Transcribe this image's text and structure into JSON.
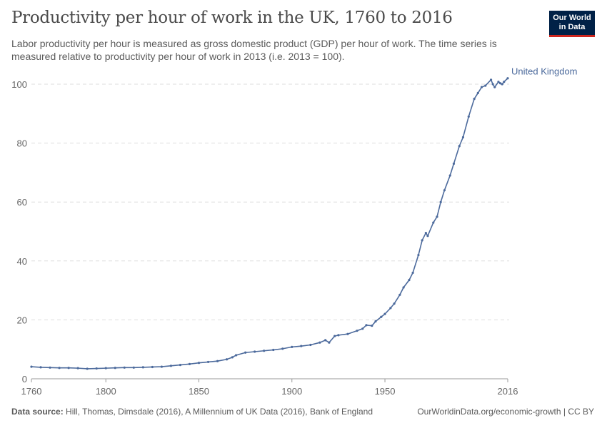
{
  "header": {
    "title": "Productivity per hour of work in the UK, 1760 to 2016",
    "subtitle": "Labor productivity per hour is measured as gross domestic product (GDP) per hour of work. The time series is measured relative to productivity per hour of work in 2013 (i.e. 2013 = 100).",
    "logo": "Our World in Data"
  },
  "footer": {
    "source_label": "Data source:",
    "source": "Hill, Thomas, Dimsdale (2016), A Millennium of UK Data (2016), Bank of England",
    "link": "OurWorldinData.org/economic-growth | CC BY"
  },
  "chart_data": {
    "type": "line",
    "title": "Productivity per hour of work in the UK, 1760 to 2016",
    "xlim": [
      1760,
      2016
    ],
    "ylim": [
      0,
      100
    ],
    "xticks": [
      "1760",
      "1800",
      "1850",
      "1900",
      "1950",
      "2016"
    ],
    "yticks": [
      "0",
      "20",
      "40",
      "60",
      "80",
      "100"
    ],
    "grid": "horizontal dashed",
    "legend": "end-of-line label",
    "series": [
      {
        "name": "United Kingdom",
        "color": "#4c6a9c",
        "x": [
          1760,
          1765,
          1770,
          1775,
          1780,
          1785,
          1790,
          1795,
          1800,
          1805,
          1810,
          1815,
          1820,
          1825,
          1830,
          1835,
          1840,
          1845,
          1850,
          1855,
          1860,
          1865,
          1868,
          1870,
          1875,
          1880,
          1885,
          1890,
          1895,
          1900,
          1905,
          1910,
          1915,
          1918,
          1920,
          1923,
          1925,
          1930,
          1935,
          1938,
          1940,
          1943,
          1945,
          1948,
          1950,
          1953,
          1955,
          1958,
          1960,
          1963,
          1965,
          1968,
          1970,
          1972,
          1973,
          1976,
          1978,
          1980,
          1982,
          1985,
          1987,
          1990,
          1992,
          1995,
          1998,
          2000,
          2002,
          2004,
          2007,
          2008,
          2009,
          2011,
          2012,
          2013,
          2014,
          2016
        ],
        "y": [
          4.1,
          3.9,
          3.8,
          3.7,
          3.7,
          3.6,
          3.4,
          3.5,
          3.6,
          3.7,
          3.8,
          3.8,
          3.9,
          4.0,
          4.1,
          4.4,
          4.7,
          5.0,
          5.4,
          5.7,
          6.0,
          6.6,
          7.3,
          8.0,
          8.9,
          9.2,
          9.5,
          9.8,
          10.2,
          10.8,
          11.1,
          11.5,
          12.3,
          13.1,
          12.3,
          14.5,
          14.8,
          15.2,
          16.3,
          17.0,
          18.2,
          18.0,
          19.5,
          21.0,
          22.0,
          24.0,
          25.5,
          28.5,
          31,
          33.5,
          36,
          42,
          47,
          49.5,
          48.5,
          53,
          55,
          60,
          64,
          69,
          73,
          79,
          82,
          89,
          95,
          97,
          99,
          99.5,
          101.5,
          100,
          99,
          100.8,
          100.3,
          100,
          100.8,
          102
        ]
      }
    ]
  }
}
